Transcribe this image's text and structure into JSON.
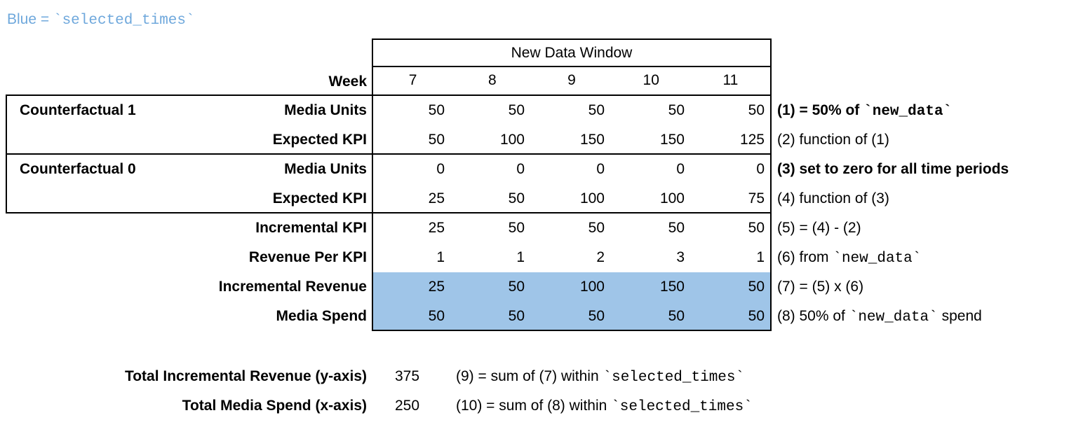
{
  "legend": {
    "text": "Blue = `selected_times`",
    "color": "#6fa8dc"
  },
  "table": {
    "window_title": "New Data Window",
    "week_label": "Week",
    "weeks": [
      "7",
      "8",
      "9",
      "10",
      "11"
    ],
    "highlight_color": "#9fc5e8",
    "groups": [
      {
        "label": "Counterfactual 1"
      },
      {
        "label": "Counterfactual 0"
      }
    ],
    "rows": [
      {
        "label": "Media Units",
        "values": [
          "50",
          "50",
          "50",
          "50",
          "50"
        ],
        "note": "(1) = 50% of `new_data`",
        "note_bold": true,
        "highlight": false
      },
      {
        "label": "Expected KPI",
        "values": [
          "50",
          "100",
          "150",
          "150",
          "125"
        ],
        "note": "(2) function of (1)",
        "note_bold": false,
        "highlight": false
      },
      {
        "label": "Media Units",
        "values": [
          "0",
          "0",
          "0",
          "0",
          "0"
        ],
        "note": "(3) set to zero for all time periods",
        "note_bold": true,
        "highlight": false
      },
      {
        "label": "Expected KPI",
        "values": [
          "25",
          "50",
          "100",
          "100",
          "75"
        ],
        "note": "(4) function of (3)",
        "note_bold": false,
        "highlight": false
      },
      {
        "label": "Incremental KPI",
        "values": [
          "25",
          "50",
          "50",
          "50",
          "50"
        ],
        "note": "(5) = (4) - (2)",
        "note_bold": false,
        "highlight": false
      },
      {
        "label": "Revenue Per KPI",
        "values": [
          "1",
          "1",
          "2",
          "3",
          "1"
        ],
        "note": "(6) from `new_data`",
        "note_bold": false,
        "highlight": false
      },
      {
        "label": "Incremental Revenue",
        "values": [
          "25",
          "50",
          "100",
          "150",
          "50"
        ],
        "note": "(7) = (5) x (6)",
        "note_bold": false,
        "highlight": true
      },
      {
        "label": "Media Spend",
        "values": [
          "50",
          "50",
          "50",
          "50",
          "50"
        ],
        "note": "(8) 50% of `new_data` spend",
        "note_bold": false,
        "highlight": true
      }
    ]
  },
  "summary": [
    {
      "label": "Total Incremental Revenue (y-axis)",
      "value": "375",
      "note": "(9) = sum of (7) within `selected_times`"
    },
    {
      "label": "Total Media Spend (x-axis)",
      "value": "250",
      "note": "(10) = sum of (8) within `selected_times`"
    }
  ]
}
